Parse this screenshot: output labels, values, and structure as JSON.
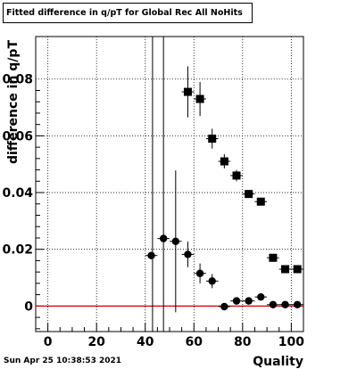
{
  "title": "Fitted difference in q/pT for Global Rec All NoHits",
  "footer": "Sun Apr 25 10:38:53 2021",
  "colors": {
    "markers": "#000000",
    "reference_line": "#cc0000",
    "grid": "#000000"
  },
  "chart_data": {
    "type": "scatter",
    "title": "Fitted difference in q/pT for Global Rec All NoHits",
    "xlabel": "Quality",
    "ylabel": "difference in q/pT",
    "xlim": [
      -5,
      105
    ],
    "ylim": [
      -0.009,
      0.095
    ],
    "xticks": [
      0,
      20,
      40,
      60,
      80,
      100
    ],
    "yticks": [
      0,
      0.02,
      0.04,
      0.06,
      0.08
    ],
    "xtick_labels": [
      "0",
      "20",
      "40",
      "60",
      "80",
      100
    ],
    "ytick_labels": [
      "0",
      "0.02",
      "0.04",
      "0.06",
      "0.08"
    ],
    "grid": true,
    "reference_line_y": 0,
    "series": [
      {
        "marker": "square",
        "x": [
          57.5,
          62.5,
          67.5,
          72.5,
          77.5,
          82.5,
          87.5,
          92.5,
          97.5,
          102.5
        ],
        "y": [
          0.0755,
          0.073,
          0.059,
          0.051,
          0.046,
          0.0395,
          0.0368,
          0.017,
          0.013,
          0.013
        ],
        "yerr": [
          0.009,
          0.006,
          0.0035,
          0.0025,
          0.002,
          0.0012,
          0.0012,
          0.0008,
          0.0008,
          0.0008
        ]
      },
      {
        "marker": "circle",
        "x": [
          42.5,
          47.5,
          52.5,
          57.5,
          62.5,
          67.5,
          72.5,
          77.5,
          82.5,
          87.5,
          92.5,
          97.5,
          102.5
        ],
        "y": [
          0.0178,
          0.0238,
          0.0228,
          0.0182,
          0.0115,
          0.0088,
          -0.0002,
          0.0018,
          0.0018,
          0.0032,
          0.0005,
          0.0005,
          0.0005
        ],
        "yerr": [
          0.0,
          0.0,
          0.025,
          0.0045,
          0.0035,
          0.0025,
          0.0012,
          0.0008,
          0.0008,
          0.0008,
          0.0005,
          0.0005,
          0.0005
        ]
      }
    ],
    "vertical_lines_x": [
      43,
      47.5
    ]
  }
}
